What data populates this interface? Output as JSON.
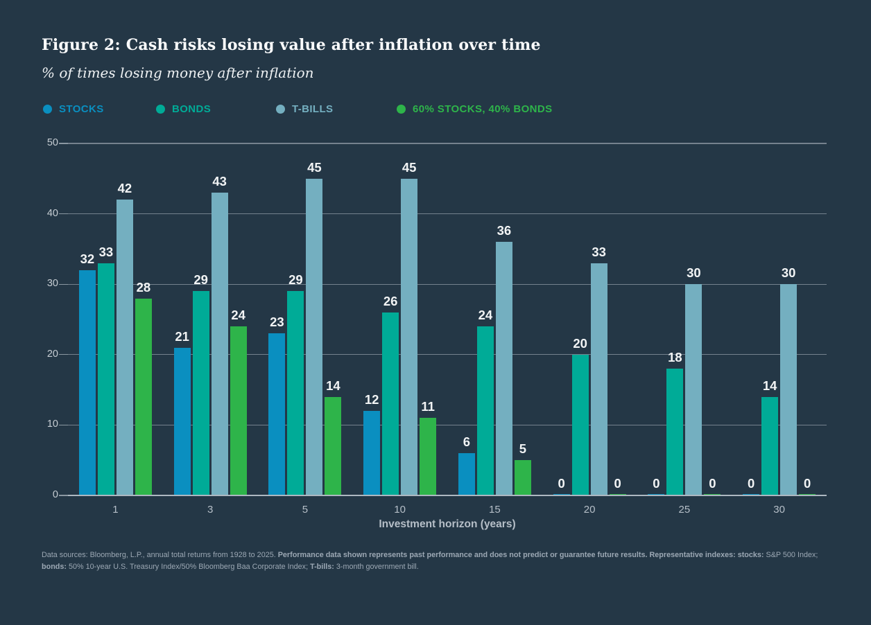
{
  "chart_data": {
    "type": "bar",
    "title": "Figure 2: Cash risks losing value after inflation over time",
    "subtitle": "% of times losing money after inflation",
    "xlabel": "Investment horizon (years)",
    "categories": [
      "1",
      "3",
      "5",
      "10",
      "15",
      "20",
      "25",
      "30"
    ],
    "ylim": [
      0,
      50
    ],
    "yticks": [
      0,
      10,
      20,
      30,
      40,
      50
    ],
    "grid": true,
    "legend_position": "top",
    "background_color": "#243746",
    "series": [
      {
        "name": "STOCKS",
        "color": "#0a8fc0",
        "values": [
          32,
          21,
          23,
          12,
          6,
          0,
          0,
          0
        ]
      },
      {
        "name": "BONDS",
        "color": "#00ab97",
        "values": [
          33,
          29,
          29,
          26,
          24,
          20,
          18,
          14
        ]
      },
      {
        "name": "T-BILLS",
        "color": "#74afc0",
        "values": [
          42,
          43,
          45,
          45,
          36,
          33,
          30,
          30
        ]
      },
      {
        "name": "60% STOCKS, 40% BONDS",
        "color": "#2eb44a",
        "values": [
          28,
          24,
          14,
          11,
          5,
          0,
          0,
          0
        ]
      }
    ]
  },
  "footnote": [
    {
      "text": "Data sources: Bloomberg, L.P., annual total returns from 1928 to 2025. ",
      "bold": false
    },
    {
      "text": "Performance data shown represents past performance and does not predict or guarantee future results. Representative indexes: stocks: ",
      "bold": true
    },
    {
      "text": "S&P 500 Index; ",
      "bold": false
    },
    {
      "text": "bonds: ",
      "bold": true
    },
    {
      "text": "50% 10-year U.S. Treasury Index/50% Bloomberg Baa Corporate Index; ",
      "bold": false
    },
    {
      "text": "T-bills: ",
      "bold": true
    },
    {
      "text": "3-month government bill.",
      "bold": false
    }
  ]
}
